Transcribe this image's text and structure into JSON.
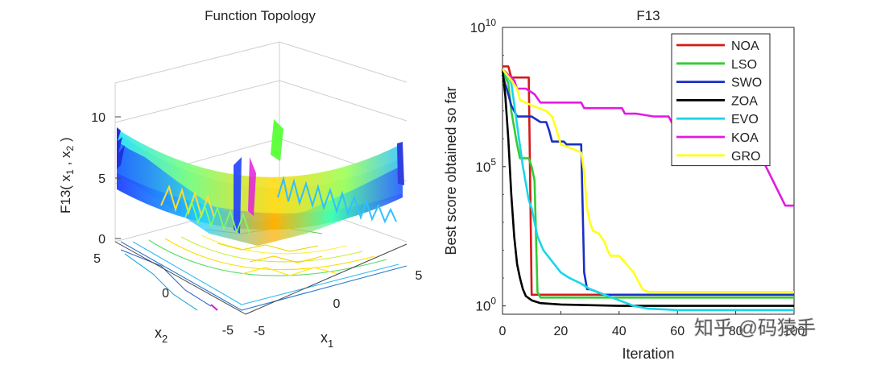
{
  "watermark": "知乎 @码猿手",
  "chart_data": [
    {
      "type": "surface",
      "title": "Function Topology",
      "xlabel": "x",
      "xlabel_sub": "1",
      "ylabel": "x",
      "ylabel_sub": "2",
      "zlabel_parts": {
        "a": "F13( x",
        "s1": "1",
        "b": " , x",
        "s2": "2",
        "c": " )"
      },
      "x_ticks": [
        "-5",
        "0",
        "5"
      ],
      "y_ticks": [
        "-5",
        "0",
        "5"
      ],
      "z_ticks": [
        "0",
        "5",
        "10"
      ],
      "xlim": [
        -5,
        5
      ],
      "ylim": [
        -5,
        5
      ],
      "zlim": [
        0,
        13
      ]
    },
    {
      "type": "line",
      "title": "F13",
      "xlabel": "Iteration",
      "ylabel": "Best score obtained so far",
      "yscale": "log",
      "xlim": [
        0,
        100
      ],
      "ylim_exp": [
        -0.3,
        10
      ],
      "x_ticks": [
        "0",
        "20",
        "40",
        "60",
        "80",
        "100"
      ],
      "y_tick_base": "10",
      "y_tick_exps": [
        "0",
        "5",
        "10"
      ],
      "legend_position": "top-right",
      "series": [
        {
          "name": "NOA",
          "color": "#d41a1a",
          "x": [
            0,
            2,
            3,
            7,
            9,
            10,
            100
          ],
          "y_log10": [
            8.6,
            8.6,
            8.2,
            8.2,
            8.2,
            0.4,
            0.4
          ]
        },
        {
          "name": "LSO",
          "color": "#33cc33",
          "x": [
            0,
            2,
            3,
            5,
            6,
            9,
            10,
            11,
            12,
            13,
            15,
            100
          ],
          "y_log10": [
            8.4,
            8.0,
            7.0,
            5.8,
            5.3,
            5.3,
            5.0,
            4.5,
            0.5,
            0.3,
            0.3,
            0.3
          ]
        },
        {
          "name": "SWO",
          "color": "#1a2fc4",
          "x": [
            0,
            2,
            3,
            5,
            10,
            13,
            15,
            16,
            17,
            21,
            22,
            27,
            28,
            29,
            30,
            35,
            100
          ],
          "y_log10": [
            8.3,
            7.6,
            7.2,
            6.8,
            6.8,
            6.6,
            6.6,
            6.3,
            5.9,
            5.9,
            5.8,
            5.8,
            1.2,
            0.6,
            0.6,
            0.4,
            0.4
          ]
        },
        {
          "name": "ZOA",
          "color": "#000000",
          "x": [
            0,
            1,
            2,
            3,
            4,
            5,
            6,
            7,
            8,
            10,
            13,
            20,
            40,
            100
          ],
          "y_log10": [
            8.5,
            7.5,
            6.0,
            4.0,
            2.5,
            1.5,
            1.0,
            0.6,
            0.35,
            0.2,
            0.1,
            0.05,
            0.0,
            0.0
          ]
        },
        {
          "name": "EVO",
          "color": "#1ad6e8",
          "x": [
            0,
            3,
            5,
            7,
            9,
            10,
            11,
            12,
            14,
            17,
            20,
            23,
            27,
            30,
            35,
            40,
            45,
            50,
            60,
            100
          ],
          "y_log10": [
            8.5,
            8.0,
            6.5,
            5.0,
            3.8,
            3.5,
            3.0,
            2.5,
            2.0,
            1.6,
            1.2,
            1.0,
            0.8,
            0.6,
            0.4,
            0.2,
            0.0,
            -0.1,
            -0.15,
            -0.15
          ]
        },
        {
          "name": "KOA",
          "color": "#e31ae3",
          "x": [
            0,
            2,
            4,
            5,
            8,
            11,
            13,
            17,
            24,
            27,
            28,
            30,
            32,
            41,
            42,
            46,
            52,
            57,
            59,
            62,
            66,
            70,
            73,
            80,
            81,
            88,
            97,
            100
          ],
          "y_log10": [
            8.5,
            8.3,
            8.1,
            7.8,
            7.8,
            7.6,
            7.3,
            7.3,
            7.3,
            7.3,
            7.1,
            7.1,
            7.1,
            7.1,
            6.9,
            6.9,
            6.8,
            6.8,
            6.4,
            6.4,
            6.0,
            6.0,
            5.8,
            5.8,
            5.5,
            5.5,
            3.6,
            3.6
          ]
        },
        {
          "name": "GRO",
          "color": "#ffff1a",
          "x": [
            0,
            3,
            5,
            6,
            10,
            15,
            17,
            18,
            20,
            25,
            27,
            28,
            29,
            30,
            31,
            33,
            35,
            36,
            37,
            40,
            45,
            47,
            48,
            50,
            100
          ],
          "y_log10": [
            8.5,
            8.1,
            7.8,
            7.4,
            7.2,
            7.0,
            6.8,
            6.5,
            5.8,
            5.6,
            5.5,
            4.8,
            3.5,
            3.0,
            2.7,
            2.6,
            2.3,
            2.0,
            1.8,
            1.8,
            1.2,
            0.8,
            0.6,
            0.5,
            0.5
          ]
        }
      ]
    }
  ]
}
